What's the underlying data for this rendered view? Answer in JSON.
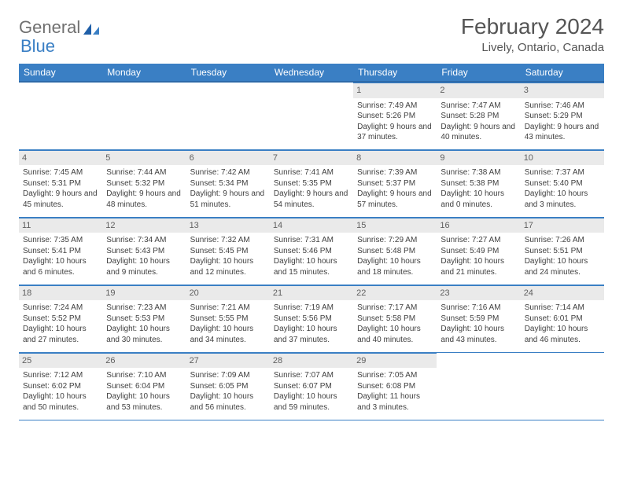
{
  "logo": {
    "text1": "General",
    "text2": "Blue"
  },
  "title": "February 2024",
  "location": "Lively, Ontario, Canada",
  "colors": {
    "header_bg": "#3a7fc4",
    "header_text": "#ffffff",
    "daynum_bg": "#eaeaea",
    "border": "#3a7fc4",
    "text": "#404040"
  },
  "weekdays": [
    "Sunday",
    "Monday",
    "Tuesday",
    "Wednesday",
    "Thursday",
    "Friday",
    "Saturday"
  ],
  "weeks": [
    [
      null,
      null,
      null,
      null,
      {
        "n": "1",
        "sr": "7:49 AM",
        "ss": "5:26 PM",
        "dl": "9 hours and 37 minutes."
      },
      {
        "n": "2",
        "sr": "7:47 AM",
        "ss": "5:28 PM",
        "dl": "9 hours and 40 minutes."
      },
      {
        "n": "3",
        "sr": "7:46 AM",
        "ss": "5:29 PM",
        "dl": "9 hours and 43 minutes."
      }
    ],
    [
      {
        "n": "4",
        "sr": "7:45 AM",
        "ss": "5:31 PM",
        "dl": "9 hours and 45 minutes."
      },
      {
        "n": "5",
        "sr": "7:44 AM",
        "ss": "5:32 PM",
        "dl": "9 hours and 48 minutes."
      },
      {
        "n": "6",
        "sr": "7:42 AM",
        "ss": "5:34 PM",
        "dl": "9 hours and 51 minutes."
      },
      {
        "n": "7",
        "sr": "7:41 AM",
        "ss": "5:35 PM",
        "dl": "9 hours and 54 minutes."
      },
      {
        "n": "8",
        "sr": "7:39 AM",
        "ss": "5:37 PM",
        "dl": "9 hours and 57 minutes."
      },
      {
        "n": "9",
        "sr": "7:38 AM",
        "ss": "5:38 PM",
        "dl": "10 hours and 0 minutes."
      },
      {
        "n": "10",
        "sr": "7:37 AM",
        "ss": "5:40 PM",
        "dl": "10 hours and 3 minutes."
      }
    ],
    [
      {
        "n": "11",
        "sr": "7:35 AM",
        "ss": "5:41 PM",
        "dl": "10 hours and 6 minutes."
      },
      {
        "n": "12",
        "sr": "7:34 AM",
        "ss": "5:43 PM",
        "dl": "10 hours and 9 minutes."
      },
      {
        "n": "13",
        "sr": "7:32 AM",
        "ss": "5:45 PM",
        "dl": "10 hours and 12 minutes."
      },
      {
        "n": "14",
        "sr": "7:31 AM",
        "ss": "5:46 PM",
        "dl": "10 hours and 15 minutes."
      },
      {
        "n": "15",
        "sr": "7:29 AM",
        "ss": "5:48 PM",
        "dl": "10 hours and 18 minutes."
      },
      {
        "n": "16",
        "sr": "7:27 AM",
        "ss": "5:49 PM",
        "dl": "10 hours and 21 minutes."
      },
      {
        "n": "17",
        "sr": "7:26 AM",
        "ss": "5:51 PM",
        "dl": "10 hours and 24 minutes."
      }
    ],
    [
      {
        "n": "18",
        "sr": "7:24 AM",
        "ss": "5:52 PM",
        "dl": "10 hours and 27 minutes."
      },
      {
        "n": "19",
        "sr": "7:23 AM",
        "ss": "5:53 PM",
        "dl": "10 hours and 30 minutes."
      },
      {
        "n": "20",
        "sr": "7:21 AM",
        "ss": "5:55 PM",
        "dl": "10 hours and 34 minutes."
      },
      {
        "n": "21",
        "sr": "7:19 AM",
        "ss": "5:56 PM",
        "dl": "10 hours and 37 minutes."
      },
      {
        "n": "22",
        "sr": "7:17 AM",
        "ss": "5:58 PM",
        "dl": "10 hours and 40 minutes."
      },
      {
        "n": "23",
        "sr": "7:16 AM",
        "ss": "5:59 PM",
        "dl": "10 hours and 43 minutes."
      },
      {
        "n": "24",
        "sr": "7:14 AM",
        "ss": "6:01 PM",
        "dl": "10 hours and 46 minutes."
      }
    ],
    [
      {
        "n": "25",
        "sr": "7:12 AM",
        "ss": "6:02 PM",
        "dl": "10 hours and 50 minutes."
      },
      {
        "n": "26",
        "sr": "7:10 AM",
        "ss": "6:04 PM",
        "dl": "10 hours and 53 minutes."
      },
      {
        "n": "27",
        "sr": "7:09 AM",
        "ss": "6:05 PM",
        "dl": "10 hours and 56 minutes."
      },
      {
        "n": "28",
        "sr": "7:07 AM",
        "ss": "6:07 PM",
        "dl": "10 hours and 59 minutes."
      },
      {
        "n": "29",
        "sr": "7:05 AM",
        "ss": "6:08 PM",
        "dl": "11 hours and 3 minutes."
      },
      null,
      null
    ]
  ],
  "labels": {
    "sunrise": "Sunrise: ",
    "sunset": "Sunset: ",
    "daylight": "Daylight: "
  }
}
